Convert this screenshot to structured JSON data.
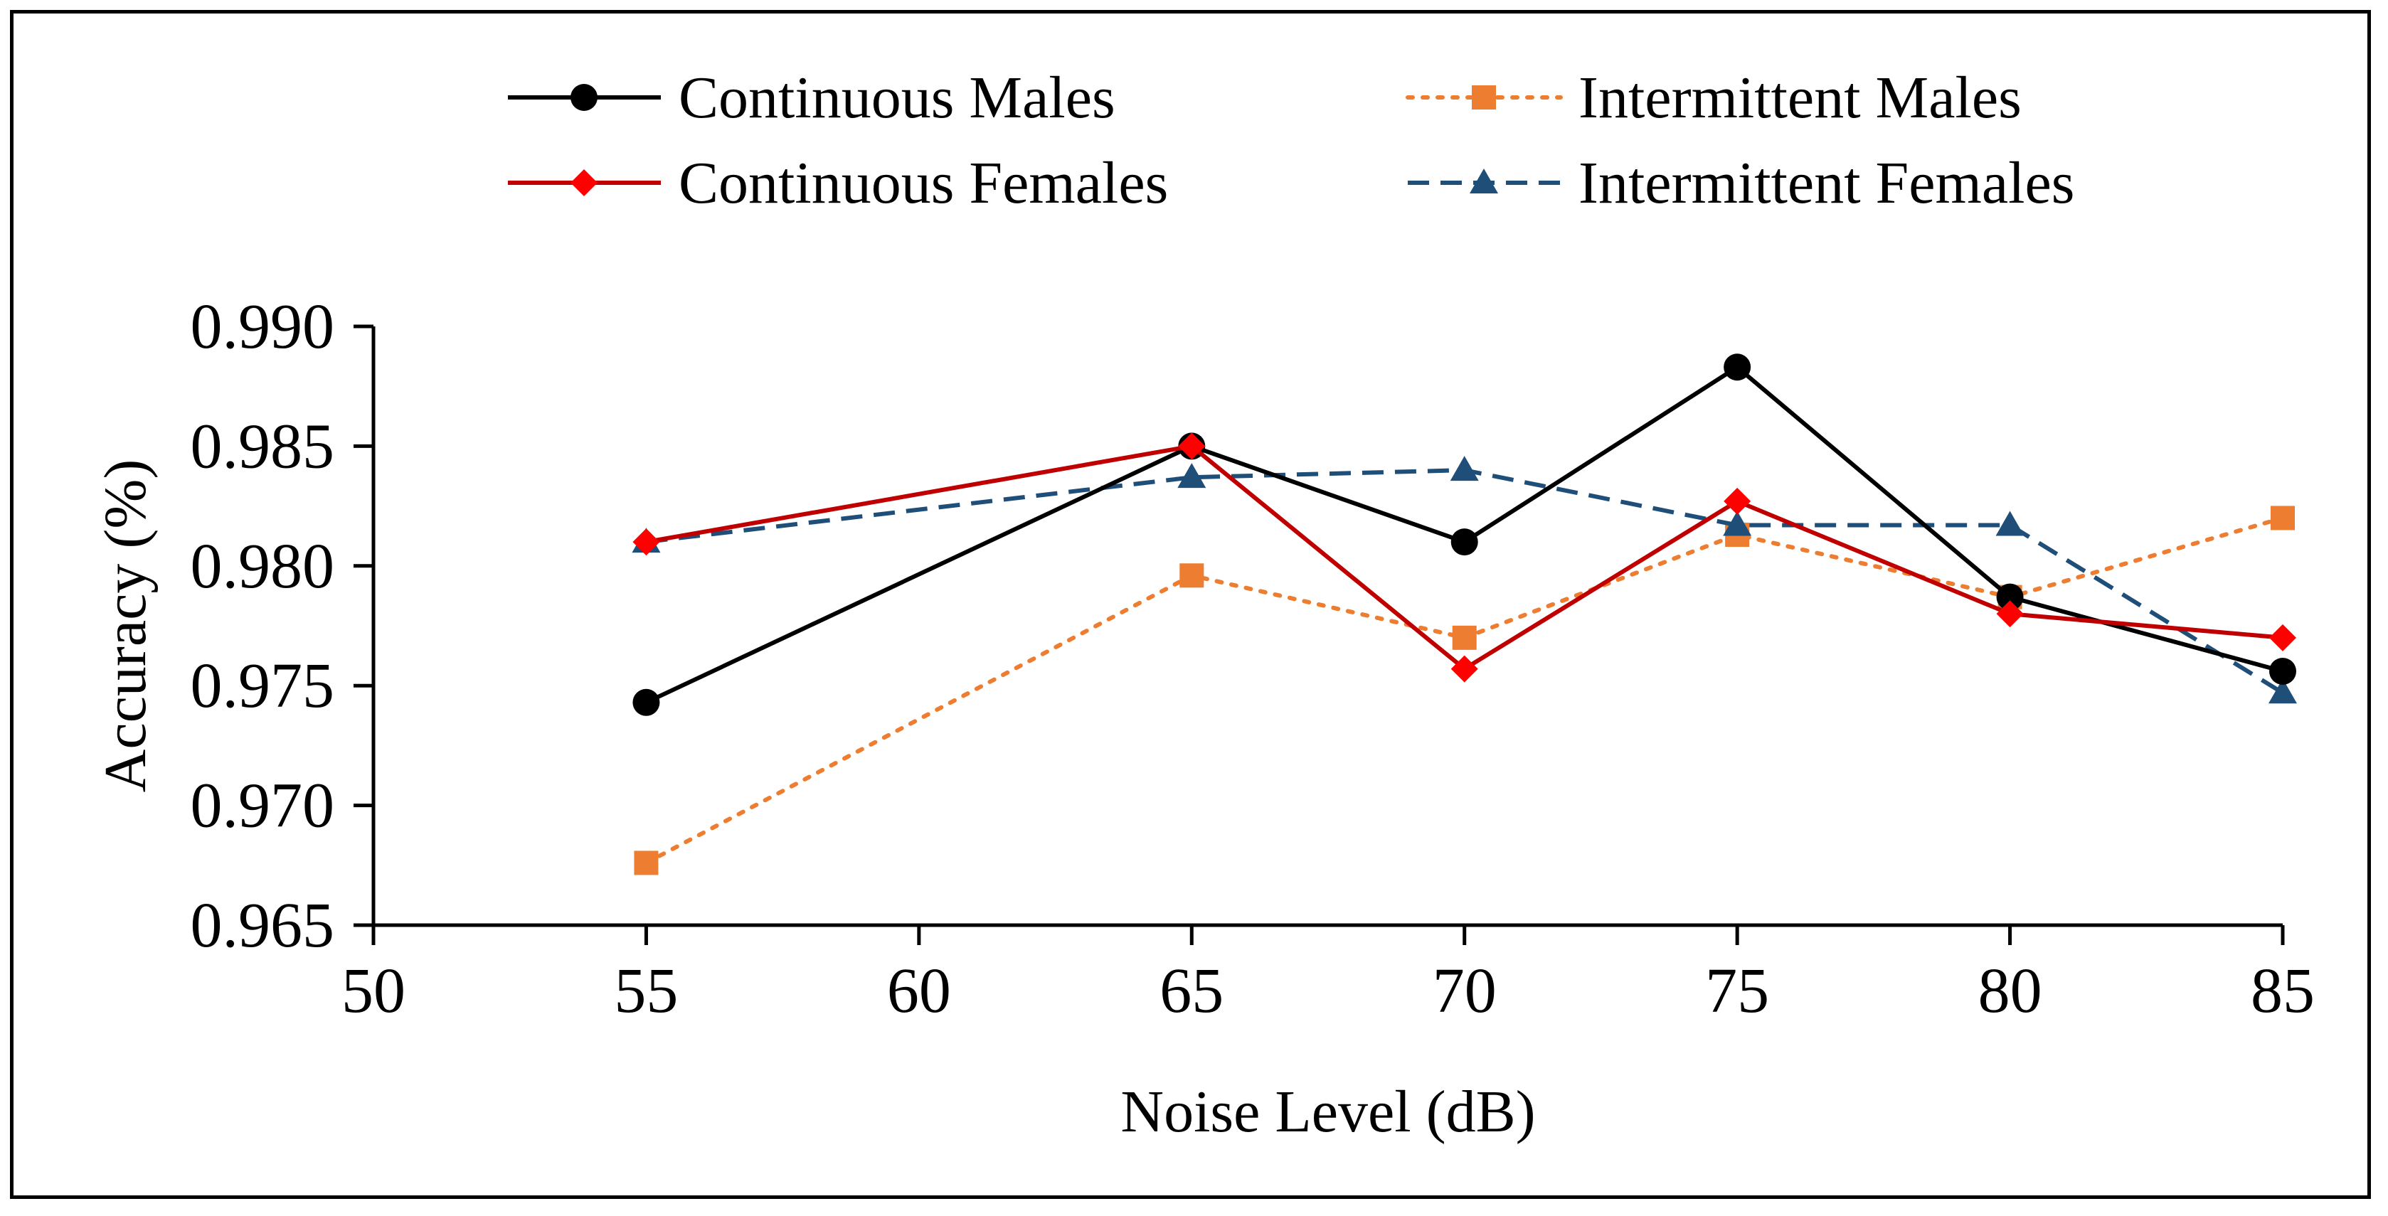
{
  "chart_data": {
    "type": "line",
    "title": "",
    "xlabel": "Noise Level (dB)",
    "ylabel": "Accuracy (%)",
    "xlim": [
      50,
      85
    ],
    "ylim": [
      0.965,
      0.99
    ],
    "x_ticks": [
      50,
      55,
      60,
      65,
      70,
      75,
      80,
      85
    ],
    "x_tick_labels": [
      "50",
      "55",
      "60",
      "65",
      "70",
      "75",
      "80",
      "85"
    ],
    "y_ticks": [
      0.965,
      0.97,
      0.975,
      0.98,
      0.985,
      0.99
    ],
    "y_tick_labels": [
      "0.965",
      "0.970",
      "0.975",
      "0.980",
      "0.985",
      "0.990"
    ],
    "grid": false,
    "legend_position": "top",
    "series": [
      {
        "name": "Continuous Males",
        "x": [
          55,
          65,
          70,
          75,
          80,
          85
        ],
        "values": [
          0.9743,
          0.985,
          0.981,
          0.9883,
          0.9787,
          0.9756
        ],
        "color": "#000000",
        "dash": "solid",
        "marker": "circle"
      },
      {
        "name": "Intermittent Males",
        "x": [
          55,
          65,
          70,
          75,
          80,
          85
        ],
        "values": [
          0.9676,
          0.9796,
          0.977,
          0.9813,
          0.9787,
          0.982
        ],
        "color": "#ED7D31",
        "dash": "dotted",
        "marker": "square"
      },
      {
        "name": "Continuous Females",
        "x": [
          55,
          65,
          70,
          75,
          80,
          85
        ],
        "values": [
          0.981,
          0.985,
          0.9757,
          0.9827,
          0.978,
          0.977
        ],
        "color": "#C00000",
        "marker_color": "#FF0000",
        "dash": "solid",
        "marker": "diamond"
      },
      {
        "name": "Intermittent Females",
        "x": [
          55,
          65,
          70,
          75,
          80,
          85
        ],
        "values": [
          0.981,
          0.9837,
          0.984,
          0.9817,
          0.9817,
          0.9747
        ],
        "color": "#1F4E79",
        "dash": "dashed",
        "marker": "triangle"
      }
    ]
  }
}
